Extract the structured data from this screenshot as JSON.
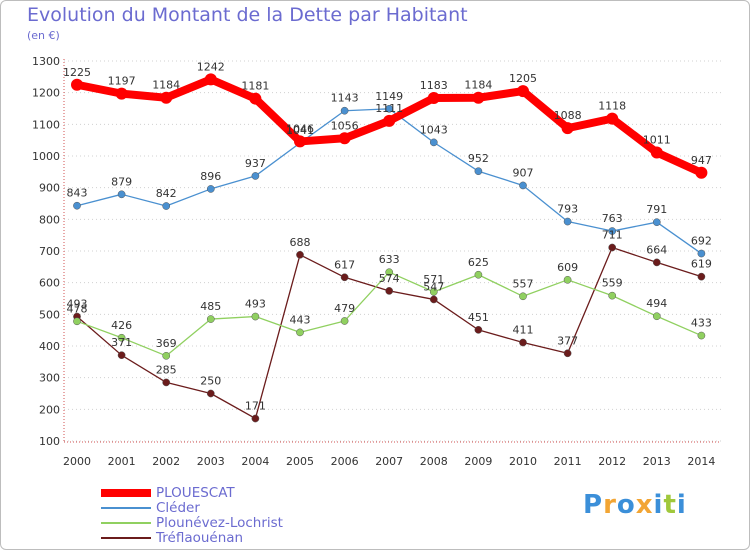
{
  "header": {
    "title": "Evolution du Montant de la Dette par Habitant",
    "subtitle": "(en €)"
  },
  "brand": {
    "letters": [
      {
        "char": "P",
        "color": "#3b8fd9"
      },
      {
        "char": "r",
        "color": "#f2a534"
      },
      {
        "char": "o",
        "color": "#3b8fd9"
      },
      {
        "char": "x",
        "color": "#f2a534"
      },
      {
        "char": "i",
        "color": "#3b8fd9"
      },
      {
        "char": "t",
        "color": "#a0c83c"
      },
      {
        "char": "i",
        "color": "#3b8fd9"
      }
    ]
  },
  "legend": [
    {
      "name": "PLOUESCAT",
      "color": "#ff0000",
      "thickness": 8
    },
    {
      "name": "Cléder",
      "color": "#4a90d0",
      "thickness": 2
    },
    {
      "name": "Plounévez-Lochrist",
      "color": "#90d060",
      "thickness": 2
    },
    {
      "name": "Tréflaouénan",
      "color": "#6b1c1c",
      "thickness": 2
    }
  ],
  "chart_data": {
    "type": "line",
    "title": "Evolution du Montant de la Dette par Habitant",
    "subtitle": "(en €)",
    "xlabel": "",
    "ylabel": "",
    "x": [
      "2000",
      "2001",
      "2002",
      "2003",
      "2004",
      "2005",
      "2006",
      "2007",
      "2008",
      "2009",
      "2010",
      "2011",
      "2012",
      "2013",
      "2014"
    ],
    "ylim": [
      100,
      1300
    ],
    "yticks": [
      100,
      200,
      300,
      400,
      500,
      600,
      700,
      800,
      900,
      1000,
      1100,
      1200,
      1300
    ],
    "grid": "horizontal dotted",
    "legend_position": "bottom-left",
    "series": [
      {
        "name": "PLOUESCAT",
        "color": "#ff0000",
        "values": [
          1225,
          1197,
          1184,
          1242,
          1181,
          1046,
          1056,
          1111,
          1183,
          1184,
          1205,
          1088,
          1118,
          1011,
          947
        ]
      },
      {
        "name": "Cléder",
        "color": "#4a90d0",
        "values": [
          843,
          879,
          842,
          896,
          937,
          1041,
          1143,
          1149,
          1043,
          952,
          907,
          793,
          763,
          791,
          692
        ]
      },
      {
        "name": "Plounévez-Lochrist",
        "color": "#90d060",
        "values": [
          478,
          426,
          369,
          485,
          493,
          443,
          479,
          633,
          571,
          625,
          557,
          609,
          559,
          494,
          433
        ]
      },
      {
        "name": "Tréflaouénan",
        "color": "#6b1c1c",
        "values": [
          493,
          371,
          285,
          250,
          171,
          688,
          617,
          574,
          547,
          451,
          411,
          377,
          711,
          664,
          619
        ]
      }
    ]
  }
}
